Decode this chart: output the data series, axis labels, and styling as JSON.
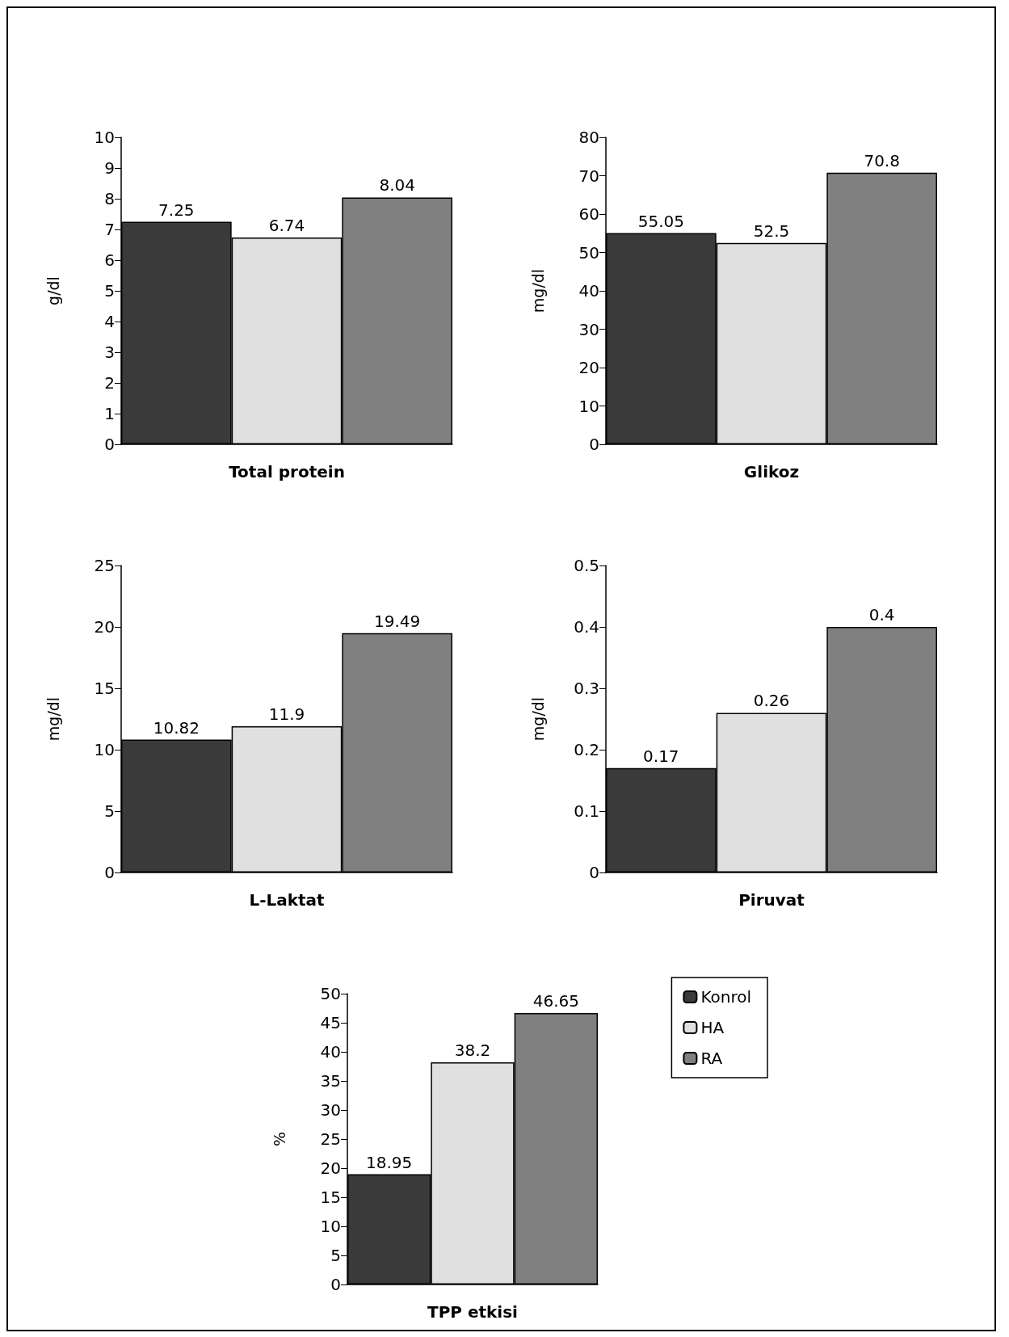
{
  "chart_data": [
    {
      "type": "bar",
      "categories": [
        null,
        null,
        null
      ],
      "xlabel": "Total protein",
      "ylabel": "g/dl",
      "ylim": [
        0,
        10
      ],
      "yticks": [
        0,
        1,
        2,
        3,
        4,
        5,
        6,
        7,
        8,
        9,
        10
      ],
      "grid": false,
      "data_labels": true,
      "series": [
        {
          "color": "#3a3a3a",
          "values": [
            7.25,
            null,
            null
          ]
        },
        {
          "color": "#e0e0e0",
          "values": [
            null,
            6.74,
            null
          ]
        },
        {
          "color": "#808080",
          "values": [
            null,
            null,
            8.04
          ]
        }
      ]
    },
    {
      "type": "bar",
      "categories": [
        null,
        null,
        null
      ],
      "xlabel": "Glikoz",
      "ylabel": "mg/dl",
      "ylim": [
        0,
        80
      ],
      "yticks": [
        0,
        10,
        20,
        30,
        40,
        50,
        60,
        70,
        80
      ],
      "grid": false,
      "data_labels": true,
      "series": [
        {
          "color": "#3a3a3a",
          "values": [
            55.05,
            null,
            null
          ]
        },
        {
          "color": "#e0e0e0",
          "values": [
            null,
            52.5,
            null
          ]
        },
        {
          "color": "#808080",
          "values": [
            null,
            null,
            70.8
          ]
        }
      ]
    },
    {
      "type": "bar",
      "categories": [
        null,
        null,
        null
      ],
      "xlabel": "L-Laktat",
      "ylabel": "mg/dl",
      "ylim": [
        0,
        25
      ],
      "yticks": [
        0,
        5,
        10,
        15,
        20,
        25
      ],
      "grid": false,
      "data_labels": true,
      "series": [
        {
          "color": "#3a3a3a",
          "values": [
            10.82,
            null,
            null
          ]
        },
        {
          "color": "#e0e0e0",
          "values": [
            null,
            11.9,
            null
          ]
        },
        {
          "color": "#808080",
          "values": [
            null,
            null,
            19.49
          ]
        }
      ]
    },
    {
      "type": "bar",
      "categories": [
        null,
        null,
        null
      ],
      "xlabel": "Piruvat",
      "ylabel": "mg/dl",
      "ylim": [
        0,
        0.5
      ],
      "yticks": [
        0,
        0.1,
        0.2,
        0.3,
        0.4,
        0.5
      ],
      "grid": false,
      "data_labels": true,
      "series": [
        {
          "color": "#3a3a3a",
          "values": [
            0.17,
            null,
            null
          ]
        },
        {
          "color": "#e0e0e0",
          "values": [
            null,
            0.26,
            null
          ]
        },
        {
          "color": "#808080",
          "values": [
            null,
            null,
            0.4
          ]
        }
      ]
    },
    {
      "type": "bar",
      "categories": [
        null,
        null,
        null
      ],
      "xlabel": "TPP etkisi",
      "ylabel": "%",
      "ylim": [
        0,
        50
      ],
      "yticks": [
        0,
        5,
        10,
        15,
        20,
        25,
        30,
        35,
        40,
        45,
        50
      ],
      "grid": false,
      "data_labels": true,
      "legend": "top right",
      "series": [
        {
          "name": "Konrol",
          "color": "#3a3a3a",
          "values": [
            18.95,
            null,
            null
          ]
        },
        {
          "name": "HA",
          "color": "#e0e0e0",
          "values": [
            null,
            38.2,
            null
          ]
        },
        {
          "name": "RA",
          "color": "#808080",
          "values": [
            null,
            null,
            46.65
          ]
        }
      ]
    }
  ]
}
